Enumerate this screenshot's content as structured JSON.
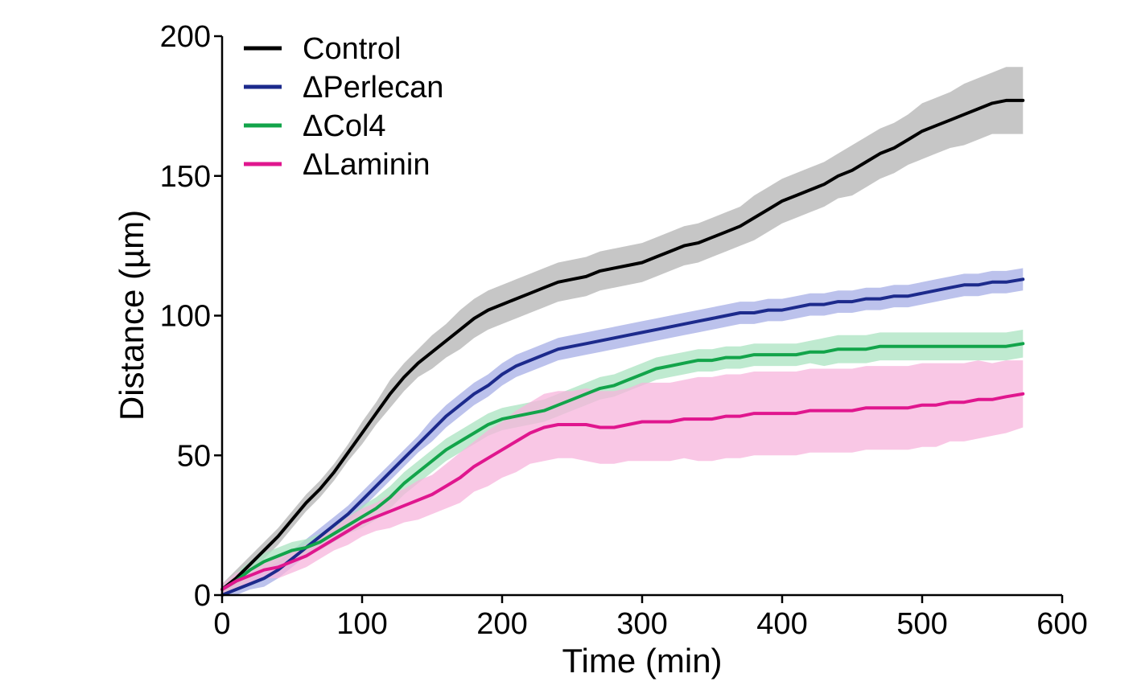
{
  "chart_data": {
    "type": "line",
    "title": "",
    "xlabel": "Time (min)",
    "ylabel": "Distance (µm)",
    "xlim": [
      0,
      600
    ],
    "ylim": [
      0,
      200
    ],
    "xticks": [
      0,
      100,
      200,
      300,
      400,
      500,
      600
    ],
    "yticks": [
      0,
      50,
      100,
      150,
      200
    ],
    "grid": false,
    "legend_position": "top-left",
    "x": [
      0,
      10,
      20,
      30,
      40,
      50,
      60,
      70,
      80,
      90,
      100,
      110,
      120,
      130,
      140,
      150,
      160,
      170,
      180,
      190,
      200,
      210,
      220,
      230,
      240,
      250,
      260,
      270,
      280,
      290,
      300,
      310,
      320,
      330,
      340,
      350,
      360,
      370,
      380,
      390,
      400,
      410,
      420,
      430,
      440,
      450,
      460,
      470,
      480,
      490,
      500,
      510,
      520,
      530,
      540,
      550,
      560,
      572
    ],
    "series": [
      {
        "name": "Control",
        "color": "#000000",
        "band_color": "#b3b3b3",
        "values": [
          2,
          6,
          11,
          16,
          21,
          27,
          33,
          38,
          44,
          51,
          58,
          65,
          72,
          78,
          83,
          87,
          91,
          95,
          99,
          102,
          104,
          106,
          108,
          110,
          112,
          113,
          114,
          116,
          117,
          118,
          119,
          121,
          123,
          125,
          126,
          128,
          130,
          132,
          135,
          138,
          141,
          143,
          145,
          147,
          150,
          152,
          155,
          158,
          160,
          163,
          166,
          168,
          170,
          172,
          174,
          176,
          177,
          177
        ],
        "band": [
          2,
          3,
          3,
          3,
          3,
          3,
          3,
          3,
          3,
          3,
          4,
          4,
          5,
          5,
          5,
          6,
          6,
          7,
          7,
          7,
          7,
          7,
          7,
          7,
          7,
          7,
          7,
          7,
          7,
          7,
          7,
          7,
          7,
          7,
          7,
          7,
          7,
          7,
          8,
          8,
          8,
          8,
          8,
          8,
          8,
          9,
          9,
          9,
          9,
          9,
          10,
          10,
          10,
          11,
          11,
          11,
          12,
          12
        ]
      },
      {
        "name": "ΔPerlecan",
        "color": "#1c2a8c",
        "band_color": "#a5aee6",
        "values": [
          0,
          2,
          4,
          6,
          9,
          13,
          17,
          21,
          25,
          29,
          34,
          39,
          44,
          49,
          54,
          59,
          64,
          68,
          72,
          75,
          79,
          82,
          84,
          86,
          88,
          89,
          90,
          91,
          92,
          93,
          94,
          95,
          96,
          97,
          98,
          99,
          100,
          101,
          101,
          102,
          102,
          103,
          104,
          104,
          105,
          105,
          106,
          106,
          107,
          107,
          108,
          109,
          110,
          111,
          111,
          112,
          112,
          113
        ],
        "band": [
          1,
          2,
          2,
          3,
          3,
          3,
          3,
          3,
          3,
          3,
          3,
          3,
          3,
          3,
          3,
          4,
          4,
          4,
          4,
          4,
          4,
          4,
          4,
          4,
          4,
          4,
          4,
          4,
          4,
          4,
          4,
          4,
          4,
          4,
          4,
          4,
          4,
          4,
          4,
          4,
          4,
          4,
          4,
          4,
          4,
          4,
          4,
          4,
          4,
          4,
          4,
          4,
          4,
          4,
          4,
          4,
          4,
          4
        ]
      },
      {
        "name": "ΔCol4",
        "color": "#12a44a",
        "band_color": "#a9e3c0",
        "values": [
          2,
          5,
          9,
          12,
          14,
          16,
          17,
          19,
          22,
          25,
          28,
          31,
          35,
          40,
          44,
          48,
          52,
          55,
          58,
          61,
          63,
          64,
          65,
          66,
          68,
          70,
          72,
          74,
          75,
          77,
          79,
          81,
          82,
          83,
          84,
          84,
          85,
          85,
          86,
          86,
          86,
          86,
          87,
          87,
          88,
          88,
          88,
          89,
          89,
          89,
          89,
          89,
          89,
          89,
          89,
          89,
          89,
          90
        ],
        "band": [
          2,
          3,
          3,
          3,
          3,
          3,
          3,
          3,
          3,
          3,
          4,
          4,
          4,
          4,
          4,
          4,
          4,
          4,
          4,
          4,
          4,
          4,
          4,
          4,
          4,
          4,
          4,
          4,
          4,
          4,
          4,
          4,
          4,
          4,
          4,
          4,
          4,
          4,
          4,
          4,
          4,
          4,
          4,
          5,
          5,
          5,
          5,
          5,
          5,
          5,
          5,
          5,
          5,
          5,
          5,
          5,
          5,
          5
        ]
      },
      {
        "name": "ΔLaminin",
        "color": "#e0168e",
        "band_color": "#f7b4dc",
        "values": [
          2,
          5,
          7,
          9,
          10,
          12,
          14,
          17,
          20,
          23,
          26,
          28,
          30,
          32,
          34,
          36,
          39,
          42,
          46,
          49,
          52,
          55,
          58,
          60,
          61,
          61,
          61,
          60,
          60,
          61,
          62,
          62,
          62,
          63,
          63,
          63,
          64,
          64,
          65,
          65,
          65,
          65,
          66,
          66,
          66,
          66,
          67,
          67,
          67,
          67,
          68,
          68,
          69,
          69,
          70,
          70,
          71,
          72
        ],
        "band": [
          2,
          3,
          3,
          3,
          4,
          4,
          4,
          4,
          4,
          5,
          5,
          5,
          6,
          6,
          7,
          7,
          8,
          9,
          9,
          10,
          10,
          11,
          11,
          12,
          12,
          12,
          13,
          13,
          13,
          13,
          14,
          14,
          14,
          14,
          15,
          15,
          15,
          15,
          15,
          15,
          15,
          15,
          15,
          15,
          15,
          15,
          15,
          15,
          15,
          15,
          15,
          15,
          14,
          14,
          14,
          13,
          13,
          12
        ]
      }
    ]
  }
}
